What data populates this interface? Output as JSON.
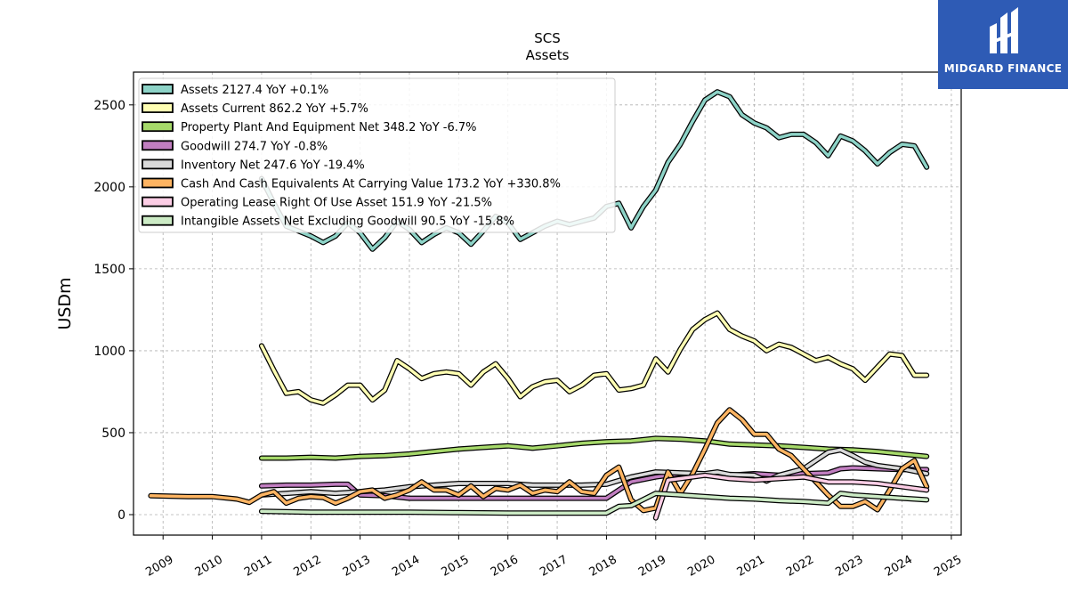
{
  "brand": {
    "name": "MIDGARD FINANCE",
    "color": "#2e5bb5"
  },
  "chart_data": {
    "type": "line",
    "title": "SCS",
    "subtitle": "Assets",
    "xlabel": "",
    "ylabel": "USDm",
    "xlim": [
      2008.4,
      2025.2
    ],
    "ylim": [
      -125,
      2700
    ],
    "x_ticks": [
      2009,
      2010,
      2011,
      2012,
      2013,
      2014,
      2015,
      2016,
      2017,
      2018,
      2019,
      2020,
      2021,
      2022,
      2023,
      2024,
      2025
    ],
    "y_ticks": [
      0,
      500,
      1000,
      1500,
      2000,
      2500
    ],
    "grid": true,
    "legend_position": "upper-left",
    "series": [
      {
        "name": "Assets",
        "legend": "Assets  2127.4 YoY +0.1%",
        "color": "#8dd3c7",
        "x": [
          2011.0,
          2011.25,
          2011.5,
          2011.75,
          2012.0,
          2012.25,
          2012.5,
          2012.75,
          2013.0,
          2013.25,
          2013.5,
          2013.75,
          2014.0,
          2014.25,
          2014.5,
          2014.75,
          2015.0,
          2015.25,
          2015.5,
          2015.75,
          2016.0,
          2016.25,
          2016.5,
          2016.75,
          2017.0,
          2017.25,
          2017.5,
          2017.75,
          2018.0,
          2018.25,
          2018.5,
          2018.75,
          2019.0,
          2019.25,
          2019.5,
          2019.75,
          2020.0,
          2020.25,
          2020.5,
          2020.75,
          2021.0,
          2021.25,
          2021.5,
          2021.75,
          2022.0,
          2022.25,
          2022.5,
          2022.75,
          2023.0,
          2023.25,
          2023.5,
          2023.75,
          2024.0,
          2024.25,
          2024.5
        ],
        "y": [
          2050,
          1900,
          1760,
          1730,
          1700,
          1660,
          1700,
          1780,
          1720,
          1620,
          1690,
          1790,
          1740,
          1660,
          1710,
          1750,
          1720,
          1650,
          1730,
          1820,
          1780,
          1680,
          1720,
          1760,
          1790,
          1770,
          1790,
          1810,
          1880,
          1900,
          1750,
          1880,
          1980,
          2150,
          2260,
          2400,
          2530,
          2580,
          2550,
          2440,
          2390,
          2360,
          2300,
          2320,
          2320,
          2270,
          2190,
          2310,
          2280,
          2220,
          2140,
          2210,
          2260,
          2250,
          2120
        ]
      },
      {
        "name": "Assets Current",
        "legend": "Assets Current  862.2 YoY +5.7%",
        "color": "#ffffb3",
        "x": [
          2011.0,
          2011.25,
          2011.5,
          2011.75,
          2012.0,
          2012.25,
          2012.5,
          2012.75,
          2013.0,
          2013.25,
          2013.5,
          2013.75,
          2014.0,
          2014.25,
          2014.5,
          2014.75,
          2015.0,
          2015.25,
          2015.5,
          2015.75,
          2016.0,
          2016.25,
          2016.5,
          2016.75,
          2017.0,
          2017.25,
          2017.5,
          2017.75,
          2018.0,
          2018.25,
          2018.5,
          2018.75,
          2019.0,
          2019.25,
          2019.5,
          2019.75,
          2020.0,
          2020.25,
          2020.5,
          2020.75,
          2021.0,
          2021.25,
          2021.5,
          2021.75,
          2022.0,
          2022.25,
          2022.5,
          2022.75,
          2023.0,
          2023.25,
          2023.5,
          2023.75,
          2024.0,
          2024.25,
          2024.5
        ],
        "y": [
          1030,
          880,
          740,
          750,
          700,
          680,
          730,
          790,
          790,
          700,
          760,
          940,
          890,
          830,
          860,
          870,
          860,
          790,
          870,
          920,
          830,
          720,
          780,
          810,
          820,
          750,
          790,
          850,
          860,
          760,
          770,
          790,
          950,
          870,
          1010,
          1130,
          1190,
          1230,
          1130,
          1090,
          1060,
          1000,
          1040,
          1020,
          980,
          940,
          960,
          920,
          890,
          820,
          900,
          980,
          970,
          850,
          850
        ]
      },
      {
        "name": "Property Plant And Equipment Net",
        "legend": "Property Plant And Equipment Net  348.2 YoY -6.7%",
        "color": "#a6d96a",
        "x": [
          2011.0,
          2011.5,
          2012.0,
          2012.5,
          2013.0,
          2013.5,
          2014.0,
          2014.5,
          2015.0,
          2015.5,
          2016.0,
          2016.5,
          2017.0,
          2017.5,
          2018.0,
          2018.5,
          2019.0,
          2019.5,
          2020.0,
          2020.5,
          2021.0,
          2021.5,
          2022.0,
          2022.5,
          2023.0,
          2023.5,
          2024.0,
          2024.5
        ],
        "y": [
          345,
          345,
          350,
          345,
          355,
          360,
          370,
          385,
          400,
          410,
          420,
          405,
          420,
          435,
          445,
          450,
          465,
          460,
          450,
          430,
          425,
          420,
          410,
          400,
          395,
          385,
          370,
          355
        ]
      },
      {
        "name": "Goodwill",
        "legend": "Goodwill  274.7 YoY -0.8%",
        "color": "#c17ec0",
        "x": [
          2011.0,
          2011.5,
          2012.0,
          2012.5,
          2012.75,
          2013.0,
          2013.5,
          2014.0,
          2014.5,
          2015.0,
          2015.5,
          2016.0,
          2016.5,
          2017.0,
          2017.5,
          2018.0,
          2018.5,
          2019.0,
          2019.5,
          2020.0,
          2020.5,
          2021.0,
          2021.5,
          2022.0,
          2022.5,
          2022.75,
          2023.0,
          2023.5,
          2024.0,
          2024.5
        ],
        "y": [
          175,
          180,
          180,
          185,
          185,
          120,
          115,
          100,
          100,
          100,
          100,
          100,
          100,
          100,
          100,
          100,
          200,
          230,
          250,
          240,
          240,
          250,
          240,
          250,
          255,
          280,
          285,
          280,
          275,
          275
        ]
      },
      {
        "name": "Inventory Net",
        "legend": "Inventory Net  247.6 YoY -19.4%",
        "color": "#d9d9d9",
        "x": [
          2011.0,
          2011.5,
          2012.0,
          2012.5,
          2013.0,
          2013.5,
          2014.0,
          2014.5,
          2015.0,
          2015.5,
          2016.0,
          2016.5,
          2017.0,
          2017.5,
          2018.0,
          2018.5,
          2019.0,
          2019.5,
          2020.0,
          2020.25,
          2020.5,
          2021.0,
          2021.25,
          2021.5,
          2022.0,
          2022.25,
          2022.5,
          2022.75,
          2023.0,
          2023.25,
          2023.5,
          2024.0,
          2024.5
        ],
        "y": [
          120,
          130,
          140,
          130,
          140,
          150,
          170,
          180,
          190,
          190,
          190,
          180,
          180,
          180,
          185,
          230,
          260,
          255,
          250,
          260,
          245,
          240,
          205,
          240,
          280,
          330,
          380,
          395,
          360,
          320,
          300,
          280,
          250
        ]
      },
      {
        "name": "Cash And Cash Equivalents At Carrying Value",
        "legend": "Cash And Cash Equivalents At Carrying Value  173.2 YoY +330.8%",
        "color": "#fdb462",
        "x": [
          2008.75,
          2009.5,
          2010.0,
          2010.5,
          2010.75,
          2011.0,
          2011.25,
          2011.5,
          2011.75,
          2012.0,
          2012.25,
          2012.5,
          2012.75,
          2013.0,
          2013.25,
          2013.5,
          2013.75,
          2014.0,
          2014.25,
          2014.5,
          2014.75,
          2015.0,
          2015.25,
          2015.5,
          2015.75,
          2016.0,
          2016.25,
          2016.5,
          2016.75,
          2017.0,
          2017.25,
          2017.5,
          2017.75,
          2018.0,
          2018.25,
          2018.5,
          2018.75,
          2019.0,
          2019.25,
          2019.5,
          2019.75,
          2020.0,
          2020.25,
          2020.5,
          2020.75,
          2021.0,
          2021.25,
          2021.5,
          2021.75,
          2022.0,
          2022.25,
          2022.5,
          2022.75,
          2023.0,
          2023.25,
          2023.5,
          2023.75,
          2024.0,
          2024.25,
          2024.5
        ],
        "y": [
          115,
          110,
          110,
          95,
          75,
          120,
          140,
          70,
          100,
          110,
          105,
          70,
          100,
          140,
          150,
          100,
          120,
          150,
          200,
          150,
          150,
          120,
          175,
          110,
          160,
          150,
          180,
          130,
          150,
          140,
          200,
          140,
          130,
          240,
          290,
          90,
          25,
          40,
          260,
          130,
          250,
          400,
          560,
          640,
          580,
          490,
          490,
          400,
          360,
          280,
          200,
          120,
          50,
          50,
          80,
          30,
          150,
          280,
          330,
          170
        ]
      },
      {
        "name": "Operating Lease Right Of Use Asset",
        "legend": "Operating Lease Right Of Use Asset  151.9 YoY -21.5%",
        "color": "#fccde5",
        "x": [
          2019.0,
          2019.25,
          2019.5,
          2019.75,
          2020.0,
          2020.5,
          2021.0,
          2021.5,
          2022.0,
          2022.5,
          2023.0,
          2023.5,
          2024.0,
          2024.5
        ],
        "y": [
          -20,
          210,
          220,
          230,
          240,
          220,
          210,
          220,
          230,
          200,
          200,
          190,
          170,
          150
        ]
      },
      {
        "name": "Intangible Assets Net Excluding Goodwill",
        "legend": "Intangible Assets Net Excluding Goodwill  90.5 YoY -15.8%",
        "color": "#ccebc5",
        "x": [
          2011.0,
          2011.5,
          2012.0,
          2013.0,
          2014.0,
          2015.0,
          2016.0,
          2017.0,
          2018.0,
          2018.25,
          2018.5,
          2019.0,
          2019.5,
          2020.0,
          2020.5,
          2021.0,
          2021.5,
          2022.0,
          2022.5,
          2022.75,
          2023.0,
          2023.5,
          2024.0,
          2024.5
        ],
        "y": [
          20,
          18,
          15,
          15,
          15,
          12,
          10,
          10,
          10,
          50,
          55,
          130,
          120,
          110,
          100,
          95,
          85,
          80,
          70,
          130,
          120,
          110,
          100,
          90
        ]
      }
    ]
  }
}
